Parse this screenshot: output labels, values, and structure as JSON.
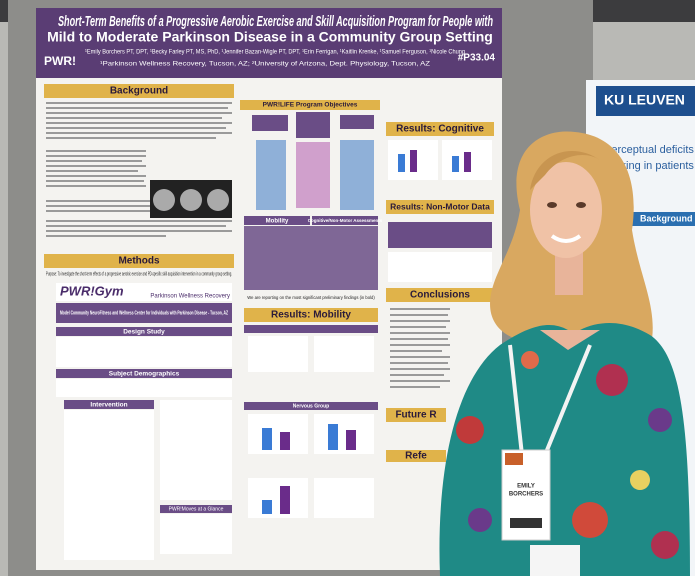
{
  "poster": {
    "title_line1": "Short-Term Benefits of a Progressive Aerobic Exercise and Skill Acquisition Program for People with",
    "title_line2": "Mild to Moderate Parkinson Disease in a Community Group Setting",
    "poster_number": "#P33.04",
    "logo": "PWR!",
    "authors": "¹Emily Borchers PT, DPT, ¹Becky Farley PT, MS, PhD, ¹Jennifer Bazan-Wigle PT, DPT, ¹Erin Ferrigan, ¹Kaitlin Krenke, ¹Samuel Ferguson, ¹Nicole Chung",
    "affiliation": "¹Parkinson Wellness Recovery, Tucson, AZ; ²University of Arizona, Dept. Physiology, Tucson, AZ",
    "background": "Background",
    "methods": "Methods",
    "purpose": "Purpose: To investigate the short-term effects of a progressive aerobic exercise and PD-specific skill acquisition intervention in a community group setting.",
    "gym_logo": "PWR!Gym",
    "gym_sub": "Parkinson Wellness Recovery",
    "center": "Model Community NeuroFitness and Wellness Center for Individuals with Parkinson Disease - Tucson, AZ",
    "design_study": "Design Study",
    "demographics": "Subject Demographics",
    "intervention": "Intervention",
    "moves": "PWR!Moves at a Glance",
    "pwr_life": "PWR!LIFE Program Objectives",
    "mobility": "Mobility",
    "cognitive_assess": "Cognitive/Non-Motor Assessments",
    "note": "We are reporting on the most significant preliminary findings (in bold)",
    "results_mobility": "Results: Mobility",
    "nervous_group": "Nervous Group",
    "results_cognitive": "Results: Cognitive",
    "results_nonmotor": "Results: Non-Motor Data",
    "conclusions": "Conclusions",
    "future": "Future R",
    "references": "Refe"
  },
  "side_poster": {
    "logo": "KU LEUVEN",
    "background": "Background",
    "line1": "Perceptual deficits of ga",
    "line2": "walking in patients with"
  },
  "badge": {
    "line1": "EMILY",
    "line2": "BORCHERS"
  }
}
